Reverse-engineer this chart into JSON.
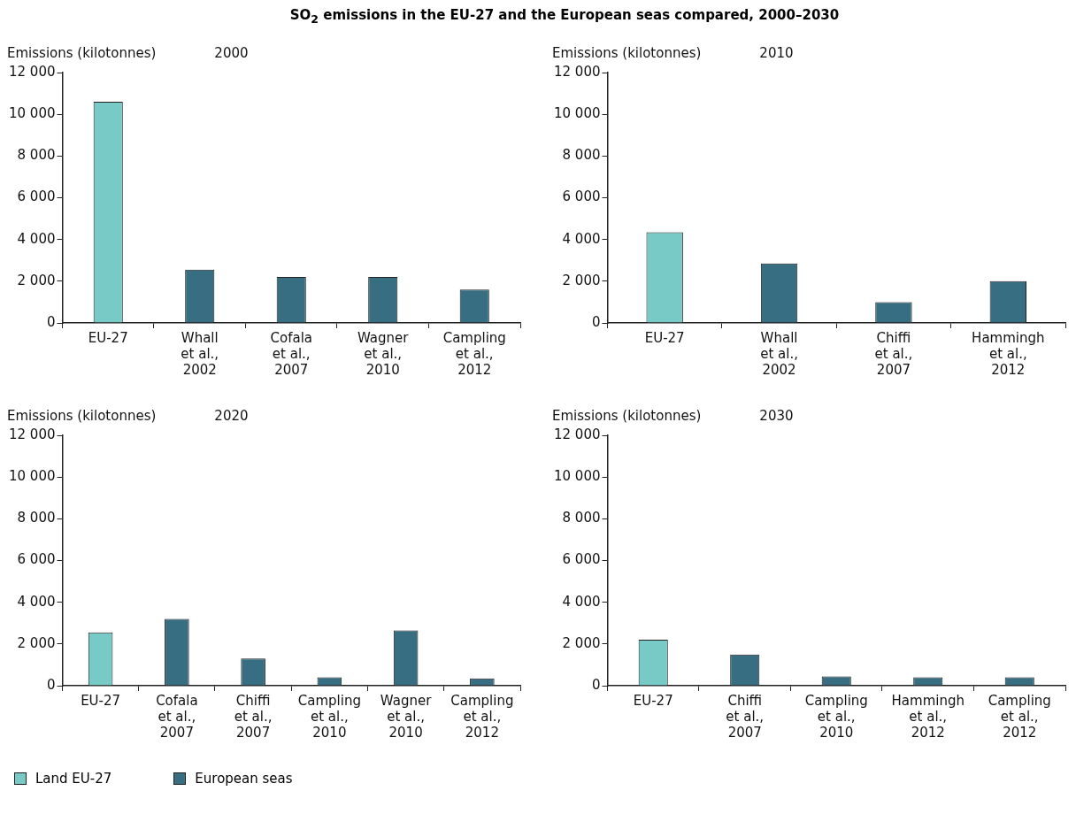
{
  "chart_data": [
    {
      "type": "bar",
      "title": "SO$_{2}$ emissions in the EU-27 and the European seas compared, 2000–2030",
      "subtitle": "2000",
      "ylabel": "Emissions (kilotonnes)",
      "categories": [
        "EU-27",
        "Whall\net al.,\n2002",
        "Cofala\net al.,\n2007",
        "Wagner\net al.,\n2010",
        "Campling\net al.,\n2012"
      ],
      "series": [
        {
          "name": "Land EU-27",
          "color": "#77cac6",
          "values": [
            10600,
            null,
            null,
            null,
            null
          ]
        },
        {
          "name": "European seas",
          "color": "#376e82",
          "values": [
            null,
            2550,
            2200,
            2200,
            1600
          ]
        }
      ],
      "ylim": [
        0,
        12000
      ],
      "yticks": [
        {
          "value": 0,
          "label": "0"
        },
        {
          "value": 2000,
          "label": "2 000"
        },
        {
          "value": 4000,
          "label": "4 000"
        },
        {
          "value": 6000,
          "label": "6 000"
        },
        {
          "value": 8000,
          "label": "8 000"
        },
        {
          "value": 10000,
          "label": "10 000"
        },
        {
          "value": 12000,
          "label": "12 000"
        }
      ],
      "grid": false,
      "legend": "bottom"
    },
    {
      "type": "bar",
      "subtitle": "2010",
      "ylabel": "Emissions (kilotonnes)",
      "categories": [
        "EU-27",
        "Whall\net al.,\n2002",
        "Chiffi\net al.,\n2007",
        "Hammingh\net al.,\n2012"
      ],
      "series": [
        {
          "color": "#77cac6",
          "values": [
            4350,
            null,
            null,
            null
          ]
        },
        {
          "color": "#376e82",
          "values": [
            null,
            2850,
            1000,
            2000
          ]
        }
      ],
      "ylim": [
        0,
        12000
      ],
      "yticks": [
        {
          "value": 0,
          "label": "0"
        },
        {
          "value": 2000,
          "label": "2 000"
        },
        {
          "value": 4000,
          "label": "4 000"
        },
        {
          "value": 6000,
          "label": "6 000"
        },
        {
          "value": 8000,
          "label": "8 000"
        },
        {
          "value": 10000,
          "label": "10 000"
        },
        {
          "value": 12000,
          "label": "12 000"
        }
      ],
      "grid": false
    },
    {
      "type": "bar",
      "subtitle": "2020",
      "ylabel": "Emissions (kilotonnes)",
      "categories": [
        "EU-27",
        "Cofala\net al.,\n2007",
        "Chiffi\net al.,\n2007",
        "Campling\net al.,\n2010",
        "Wagner\net al.,\n2010",
        "Campling\net al.,\n2012"
      ],
      "series": [
        {
          "color": "#77cac6",
          "values": [
            2550,
            null,
            null,
            null,
            null,
            null
          ]
        },
        {
          "color": "#376e82",
          "values": [
            null,
            3200,
            1300,
            400,
            2650,
            350
          ]
        }
      ],
      "ylim": [
        0,
        12000
      ],
      "yticks": [
        {
          "value": 0,
          "label": "0"
        },
        {
          "value": 2000,
          "label": "2 000"
        },
        {
          "value": 4000,
          "label": "4 000"
        },
        {
          "value": 6000,
          "label": "6 000"
        },
        {
          "value": 8000,
          "label": "8 000"
        },
        {
          "value": 10000,
          "label": "10 000"
        },
        {
          "value": 12000,
          "label": "12 000"
        }
      ],
      "grid": false
    },
    {
      "type": "bar",
      "subtitle": "2030",
      "ylabel": "Emissions (kilotonnes)",
      "categories": [
        "EU-27",
        "Chiffi\net al.,\n2007",
        "Campling\net al.,\n2010",
        "Hammingh\net al.,\n2012",
        "Campling\net al.,\n2012"
      ],
      "series": [
        {
          "color": "#77cac6",
          "values": [
            2200,
            null,
            null,
            null,
            null
          ]
        },
        {
          "color": "#376e82",
          "values": [
            null,
            1500,
            450,
            400,
            400
          ]
        }
      ],
      "ylim": [
        0,
        12000
      ],
      "yticks": [
        {
          "value": 0,
          "label": "0"
        },
        {
          "value": 2000,
          "label": "2 000"
        },
        {
          "value": 4000,
          "label": "4 000"
        },
        {
          "value": 6000,
          "label": "6 000"
        },
        {
          "value": 8000,
          "label": "8 000"
        },
        {
          "value": 10000,
          "label": "10 000"
        },
        {
          "value": 12000,
          "label": "12 000"
        }
      ],
      "grid": false
    }
  ]
}
